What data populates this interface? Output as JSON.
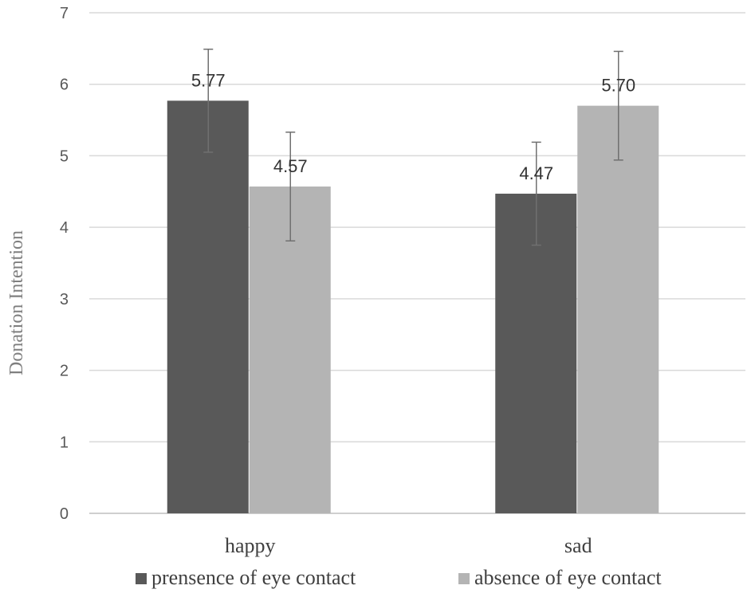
{
  "chart_data": {
    "type": "bar",
    "title": "",
    "xlabel": "",
    "ylabel": "Donation Intention",
    "ylim": [
      0,
      7
    ],
    "yticks": [
      0,
      1,
      2,
      3,
      4,
      5,
      6,
      7
    ],
    "grid": true,
    "legend_position": "bottom",
    "categories": [
      "happy",
      "sad"
    ],
    "series": [
      {
        "name": "prensence of eye contact",
        "color": "#595959",
        "values": [
          5.77,
          4.47
        ],
        "labels": [
          "5.77",
          "4.47"
        ],
        "error": [
          0.72,
          0.72
        ]
      },
      {
        "name": "absence of eye contact",
        "color": "#b4b4b4",
        "values": [
          4.57,
          5.7
        ],
        "labels": [
          "4.57",
          "5.70"
        ],
        "error": [
          0.76,
          0.76
        ]
      }
    ]
  }
}
